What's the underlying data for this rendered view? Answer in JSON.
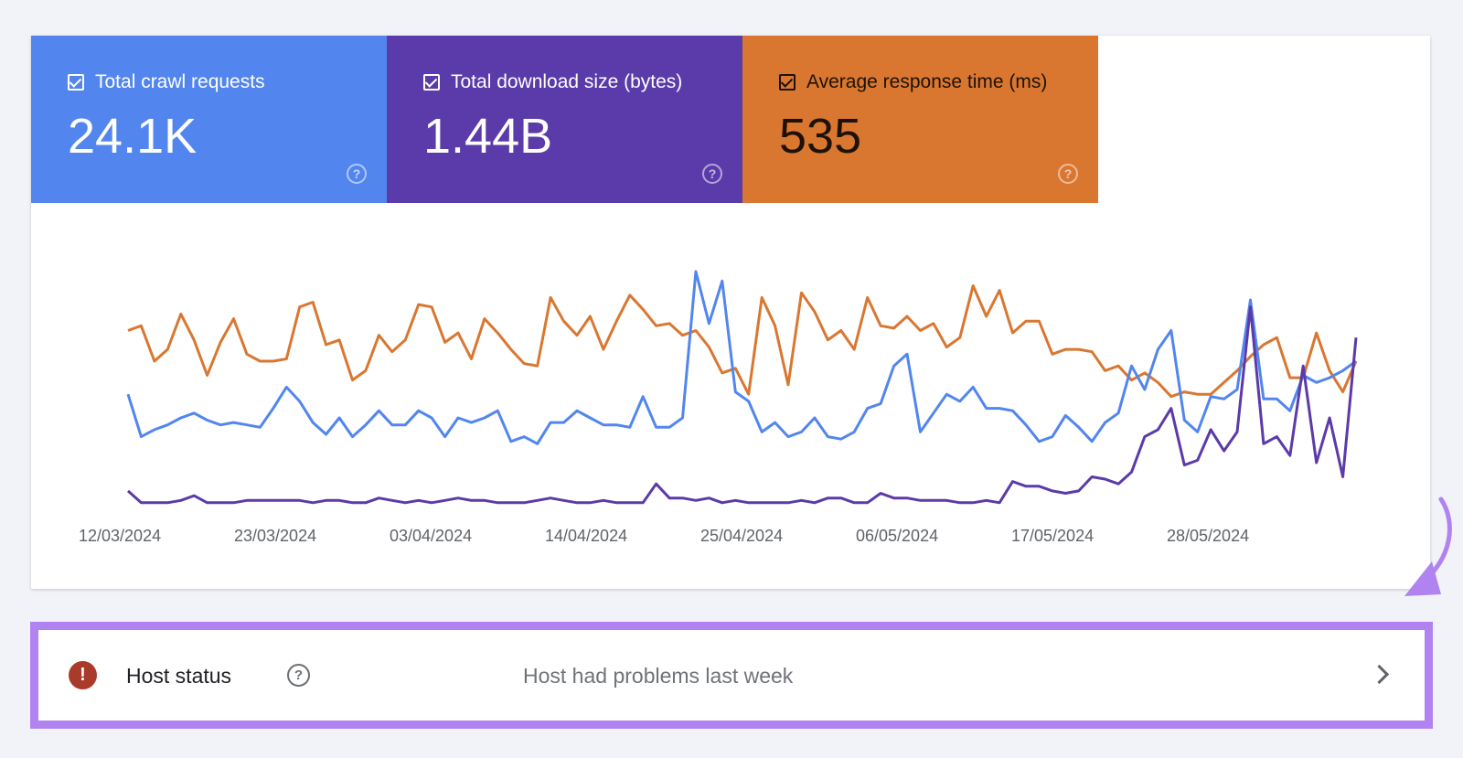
{
  "metrics": [
    {
      "label": "Total crawl requests",
      "value": "24.1K",
      "color": "#5286ee",
      "checked": true
    },
    {
      "label": "Total download size (bytes)",
      "value": "1.44B",
      "color": "#5b3aa9",
      "checked": true
    },
    {
      "label": "Average response time (ms)",
      "value": "535",
      "color": "#d97731",
      "checked": true
    }
  ],
  "chart_data": {
    "type": "line",
    "title": "",
    "xlabel": "",
    "ylabel": "",
    "x_tick_labels": [
      "12/03/2024",
      "23/03/2024",
      "03/04/2024",
      "14/04/2024",
      "25/04/2024",
      "06/05/2024",
      "17/05/2024",
      "28/05/2024"
    ],
    "x_range": [
      "12/03/2024",
      "06/06/2024"
    ],
    "grid": false,
    "legend": "none",
    "series": [
      {
        "name": "Average response time (ms)",
        "color": "#d97731",
        "ylim": [
          0,
          100
        ],
        "values": [
          75,
          77,
          62,
          67,
          82,
          71,
          56,
          70,
          80,
          65,
          62,
          62,
          63,
          85,
          87,
          69,
          71,
          54,
          58,
          73,
          66,
          71,
          86,
          85,
          70,
          74,
          63,
          80,
          74,
          67,
          61,
          60,
          89,
          79,
          73,
          81,
          67,
          79,
          90,
          84,
          77,
          78,
          73,
          75,
          68,
          57,
          59,
          48,
          89,
          77,
          52,
          91,
          83,
          71,
          75,
          67,
          89,
          77,
          76,
          81,
          75,
          78,
          68,
          72,
          94,
          81,
          92,
          74,
          79,
          79,
          65,
          67,
          67,
          66,
          58,
          60,
          54,
          57,
          53,
          47,
          49,
          48,
          48,
          53,
          58,
          64,
          69,
          72,
          55,
          55,
          74,
          58,
          49,
          62
        ]
      },
      {
        "name": "Total crawl requests",
        "color": "#5286ee",
        "ylim": [
          0,
          100
        ],
        "values": [
          48,
          30,
          33,
          35,
          38,
          40,
          37,
          35,
          36,
          35,
          34,
          42,
          51,
          45,
          36,
          31,
          38,
          30,
          35,
          41,
          35,
          35,
          41,
          38,
          30,
          38,
          36,
          38,
          41,
          28,
          30,
          27,
          36,
          36,
          41,
          38,
          35,
          35,
          34,
          47,
          34,
          34,
          38,
          100,
          78,
          96,
          49,
          45,
          32,
          36,
          30,
          32,
          38,
          30,
          29,
          32,
          42,
          44,
          60,
          65,
          32,
          40,
          48,
          45,
          51,
          42,
          42,
          41,
          35,
          28,
          30,
          39,
          34,
          28,
          36,
          40,
          60,
          50,
          67,
          75,
          37,
          32,
          47,
          46,
          50,
          88,
          46,
          46,
          41,
          56,
          53,
          55,
          58,
          62
        ]
      },
      {
        "name": "Total download size (bytes)",
        "color": "#5b3aa9",
        "ylim": [
          0,
          100
        ],
        "values": [
          7,
          2,
          2,
          2,
          3,
          5,
          2,
          2,
          2,
          3,
          3,
          3,
          3,
          3,
          2,
          3,
          3,
          2,
          2,
          4,
          3,
          2,
          3,
          2,
          3,
          4,
          3,
          3,
          2,
          2,
          2,
          3,
          4,
          3,
          2,
          2,
          3,
          2,
          2,
          2,
          10,
          4,
          4,
          3,
          4,
          2,
          3,
          2,
          2,
          2,
          2,
          3,
          2,
          4,
          4,
          2,
          2,
          6,
          4,
          4,
          3,
          3,
          3,
          2,
          2,
          3,
          2,
          11,
          9,
          9,
          7,
          6,
          7,
          13,
          12,
          10,
          15,
          30,
          33,
          42,
          18,
          20,
          33,
          24,
          32,
          85,
          27,
          30,
          22,
          60,
          19,
          38,
          13,
          72
        ]
      }
    ]
  },
  "host_status": {
    "title": "Host status",
    "message": "Host had problems last week",
    "status_color": "#a93b2a",
    "highlight_color": "#b083f1"
  },
  "icons": {
    "help": "?",
    "error": "!"
  }
}
